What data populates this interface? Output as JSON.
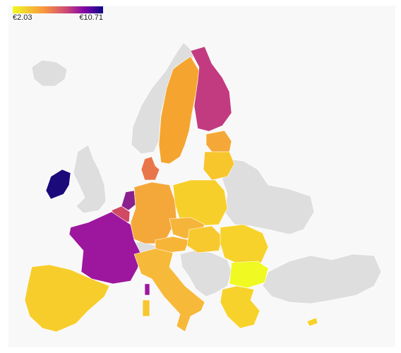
{
  "legend": {
    "min": {
      "value": 2.03,
      "label": "€2.03"
    },
    "max": {
      "value": 10.71,
      "label": "€10.71"
    }
  }
}
